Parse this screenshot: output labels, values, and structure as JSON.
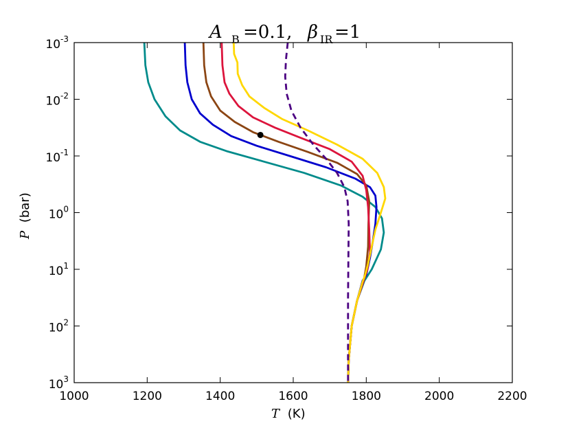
{
  "chart_data": {
    "type": "line",
    "title": {
      "a_sym": "A",
      "a_sub": "B",
      "a_val": "=0.1,",
      "b_sym": "β",
      "b_sub": "IR",
      "b_val": "=1"
    },
    "xlabel": {
      "var": "T",
      "unit": "(K)"
    },
    "ylabel": {
      "var": "P",
      "unit": "(bar)"
    },
    "xlim": [
      1000,
      2200
    ],
    "ylim_log10": [
      -3,
      3
    ],
    "y_scale": "log",
    "y_inverted": true,
    "x_ticks": [
      "1000",
      "1200",
      "1400",
      "1600",
      "1800",
      "2000",
      "2200"
    ],
    "y_ticks": [
      {
        "base": "10",
        "exp": "-3"
      },
      {
        "base": "10",
        "exp": "-2"
      },
      {
        "base": "10",
        "exp": "-1"
      },
      {
        "base": "10",
        "exp": "0"
      },
      {
        "base": "10",
        "exp": "1"
      },
      {
        "base": "10",
        "exp": "2"
      },
      {
        "base": "10",
        "exp": "3"
      }
    ],
    "grid": false,
    "series": [
      {
        "color": "#008B8B",
        "dashed": false,
        "points": [
          [
            1192,
            -3
          ],
          [
            1195,
            -2.6
          ],
          [
            1203,
            -2.3
          ],
          [
            1220,
            -2.0
          ],
          [
            1250,
            -1.7
          ],
          [
            1290,
            -1.45
          ],
          [
            1345,
            -1.25
          ],
          [
            1420,
            -1.08
          ],
          [
            1520,
            -0.9
          ],
          [
            1630,
            -0.7
          ],
          [
            1730,
            -0.48
          ],
          [
            1790,
            -0.28
          ],
          [
            1825,
            -0.1
          ],
          [
            1843,
            0.1
          ],
          [
            1848,
            0.35
          ],
          [
            1840,
            0.65
          ],
          [
            1815,
            1.0
          ],
          [
            1795,
            1.2
          ],
          [
            1775,
            1.55
          ],
          [
            1760,
            2.0
          ],
          [
            1752,
            2.6
          ],
          [
            1750,
            3
          ]
        ]
      },
      {
        "color": "#0000CD",
        "dashed": false,
        "points": [
          [
            1303,
            -3
          ],
          [
            1305,
            -2.6
          ],
          [
            1310,
            -2.3
          ],
          [
            1322,
            -2.0
          ],
          [
            1345,
            -1.75
          ],
          [
            1380,
            -1.55
          ],
          [
            1430,
            -1.35
          ],
          [
            1500,
            -1.18
          ],
          [
            1590,
            -1.0
          ],
          [
            1690,
            -0.8
          ],
          [
            1770,
            -0.6
          ],
          [
            1810,
            -0.45
          ],
          [
            1825,
            -0.3
          ],
          [
            1828,
            -0.1
          ],
          [
            1825,
            0.2
          ],
          [
            1818,
            0.5
          ],
          [
            1810,
            0.8
          ],
          [
            1800,
            1.1
          ],
          [
            1790,
            1.2
          ],
          [
            1775,
            1.55
          ],
          [
            1760,
            2.0
          ],
          [
            1752,
            2.6
          ],
          [
            1750,
            3
          ]
        ]
      },
      {
        "color": "#8B4513",
        "dashed": false,
        "points": [
          [
            1354,
            -3
          ],
          [
            1356,
            -2.6
          ],
          [
            1362,
            -2.3
          ],
          [
            1375,
            -2.05
          ],
          [
            1400,
            -1.8
          ],
          [
            1440,
            -1.6
          ],
          [
            1490,
            -1.42
          ],
          [
            1560,
            -1.25
          ],
          [
            1640,
            -1.07
          ],
          [
            1720,
            -0.88
          ],
          [
            1775,
            -0.68
          ],
          [
            1800,
            -0.48
          ],
          [
            1808,
            -0.2
          ],
          [
            1806,
            0.2
          ],
          [
            1805,
            0.6
          ],
          [
            1800,
            0.95
          ],
          [
            1793,
            1.2
          ],
          [
            1775,
            1.55
          ],
          [
            1760,
            2.0
          ],
          [
            1752,
            2.6
          ],
          [
            1750,
            3
          ]
        ]
      },
      {
        "color": "#DC143C",
        "dashed": false,
        "points": [
          [
            1404,
            -3
          ],
          [
            1406,
            -2.6
          ],
          [
            1412,
            -2.3
          ],
          [
            1425,
            -2.1
          ],
          [
            1450,
            -1.88
          ],
          [
            1490,
            -1.68
          ],
          [
            1550,
            -1.5
          ],
          [
            1620,
            -1.32
          ],
          [
            1700,
            -1.12
          ],
          [
            1760,
            -0.9
          ],
          [
            1790,
            -0.65
          ],
          [
            1800,
            -0.4
          ],
          [
            1805,
            -0.1
          ],
          [
            1808,
            0.3
          ],
          [
            1810,
            0.7
          ],
          [
            1803,
            1.0
          ],
          [
            1793,
            1.2
          ],
          [
            1775,
            1.55
          ],
          [
            1760,
            2.0
          ],
          [
            1752,
            2.6
          ],
          [
            1750,
            3
          ]
        ]
      },
      {
        "color": "#FFD700",
        "dashed": false,
        "points": [
          [
            1437,
            -3
          ],
          [
            1438,
            -2.8
          ],
          [
            1447,
            -2.65
          ],
          [
            1448,
            -2.45
          ],
          [
            1460,
            -2.25
          ],
          [
            1480,
            -2.05
          ],
          [
            1520,
            -1.85
          ],
          [
            1570,
            -1.65
          ],
          [
            1640,
            -1.45
          ],
          [
            1720,
            -1.2
          ],
          [
            1790,
            -0.95
          ],
          [
            1830,
            -0.7
          ],
          [
            1848,
            -0.45
          ],
          [
            1852,
            -0.25
          ],
          [
            1840,
            0.0
          ],
          [
            1825,
            0.3
          ],
          [
            1815,
            0.6
          ],
          [
            1805,
            0.9
          ],
          [
            1797,
            1.1
          ],
          [
            1790,
            1.22
          ],
          [
            1775,
            1.55
          ],
          [
            1760,
            2.0
          ],
          [
            1752,
            2.6
          ],
          [
            1750,
            3
          ]
        ]
      },
      {
        "color": "#4B0082",
        "dashed": true,
        "points": [
          [
            1585,
            -3
          ],
          [
            1580,
            -2.7
          ],
          [
            1578,
            -2.4
          ],
          [
            1582,
            -2.1
          ],
          [
            1595,
            -1.8
          ],
          [
            1620,
            -1.5
          ],
          [
            1655,
            -1.2
          ],
          [
            1690,
            -0.95
          ],
          [
            1720,
            -0.7
          ],
          [
            1740,
            -0.45
          ],
          [
            1749,
            -0.2
          ],
          [
            1752,
            0.2
          ],
          [
            1751,
            0.8
          ],
          [
            1750,
            1.5
          ],
          [
            1750,
            2.2
          ],
          [
            1750,
            3
          ]
        ]
      }
    ],
    "marker": {
      "x": 1510,
      "y_log10": -1.37,
      "color": "#000000"
    }
  }
}
